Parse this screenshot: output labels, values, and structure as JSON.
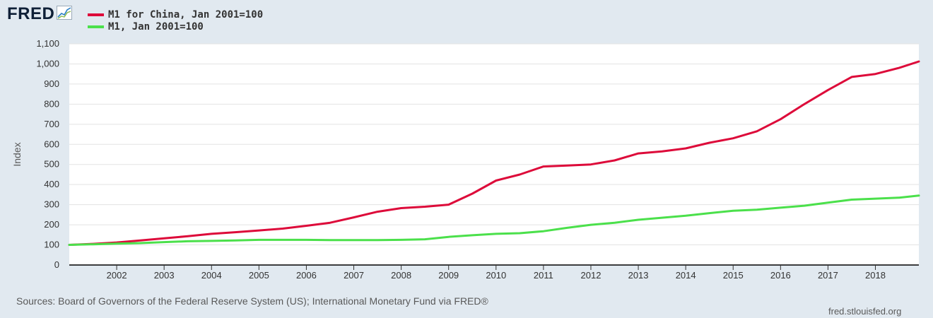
{
  "header": {
    "logo_text": "FRED"
  },
  "footer": {
    "source": "Sources: Board of Governors of the Federal Reserve System (US); International Monetary Fund via FRED®",
    "credit": "fred.stlouisfed.org"
  },
  "chart_data": {
    "type": "line",
    "xlabel": "",
    "ylabel": "Index",
    "ylim": [
      0,
      1100
    ],
    "xlim": [
      "2001-01",
      "2018-12"
    ],
    "y_ticks": [
      "0",
      "100",
      "200",
      "300",
      "400",
      "500",
      "600",
      "700",
      "800",
      "900",
      "1,000",
      "1,100"
    ],
    "x_ticks": [
      "2002",
      "2003",
      "2004",
      "2005",
      "2006",
      "2007",
      "2008",
      "2009",
      "2010",
      "2011",
      "2012",
      "2013",
      "2014",
      "2015",
      "2016",
      "2017",
      "2018"
    ],
    "grid": true,
    "legend_position": "top-left",
    "series": [
      {
        "name": "M1 for China, Jan 2001=100",
        "color": "#dd0b3a",
        "points": [
          [
            "2001-01",
            100
          ],
          [
            "2001-07",
            105
          ],
          [
            "2002-01",
            112
          ],
          [
            "2002-07",
            122
          ],
          [
            "2003-01",
            133
          ],
          [
            "2003-07",
            143
          ],
          [
            "2004-01",
            155
          ],
          [
            "2004-07",
            163
          ],
          [
            "2005-01",
            172
          ],
          [
            "2005-07",
            181
          ],
          [
            "2006-01",
            195
          ],
          [
            "2006-07",
            210
          ],
          [
            "2007-01",
            237
          ],
          [
            "2007-07",
            265
          ],
          [
            "2008-01",
            283
          ],
          [
            "2008-07",
            290
          ],
          [
            "2009-01",
            300
          ],
          [
            "2009-07",
            355
          ],
          [
            "2010-01",
            420
          ],
          [
            "2010-07",
            450
          ],
          [
            "2011-01",
            490
          ],
          [
            "2011-07",
            495
          ],
          [
            "2012-01",
            500
          ],
          [
            "2012-07",
            520
          ],
          [
            "2013-01",
            555
          ],
          [
            "2013-07",
            565
          ],
          [
            "2014-01",
            580
          ],
          [
            "2014-07",
            608
          ],
          [
            "2015-01",
            630
          ],
          [
            "2015-07",
            665
          ],
          [
            "2016-01",
            725
          ],
          [
            "2016-07",
            800
          ],
          [
            "2017-01",
            870
          ],
          [
            "2017-07",
            935
          ],
          [
            "2018-01",
            950
          ],
          [
            "2018-07",
            980
          ],
          [
            "2018-12",
            1012
          ]
        ]
      },
      {
        "name": "M1, Jan 2001=100",
        "color": "#4be04b",
        "points": [
          [
            "2001-01",
            100
          ],
          [
            "2001-07",
            103
          ],
          [
            "2002-01",
            106
          ],
          [
            "2002-07",
            109
          ],
          [
            "2003-01",
            114
          ],
          [
            "2003-07",
            118
          ],
          [
            "2004-01",
            120
          ],
          [
            "2004-07",
            122
          ],
          [
            "2005-01",
            125
          ],
          [
            "2005-07",
            125
          ],
          [
            "2006-01",
            125
          ],
          [
            "2006-07",
            124
          ],
          [
            "2007-01",
            124
          ],
          [
            "2007-07",
            124
          ],
          [
            "2008-01",
            125
          ],
          [
            "2008-07",
            128
          ],
          [
            "2009-01",
            140
          ],
          [
            "2009-07",
            148
          ],
          [
            "2010-01",
            155
          ],
          [
            "2010-07",
            158
          ],
          [
            "2011-01",
            168
          ],
          [
            "2011-07",
            185
          ],
          [
            "2012-01",
            200
          ],
          [
            "2012-07",
            210
          ],
          [
            "2013-01",
            225
          ],
          [
            "2013-07",
            235
          ],
          [
            "2014-01",
            245
          ],
          [
            "2014-07",
            258
          ],
          [
            "2015-01",
            270
          ],
          [
            "2015-07",
            275
          ],
          [
            "2016-01",
            285
          ],
          [
            "2016-07",
            295
          ],
          [
            "2017-01",
            310
          ],
          [
            "2017-07",
            325
          ],
          [
            "2018-01",
            330
          ],
          [
            "2018-07",
            335
          ],
          [
            "2018-12",
            345
          ]
        ]
      }
    ]
  }
}
